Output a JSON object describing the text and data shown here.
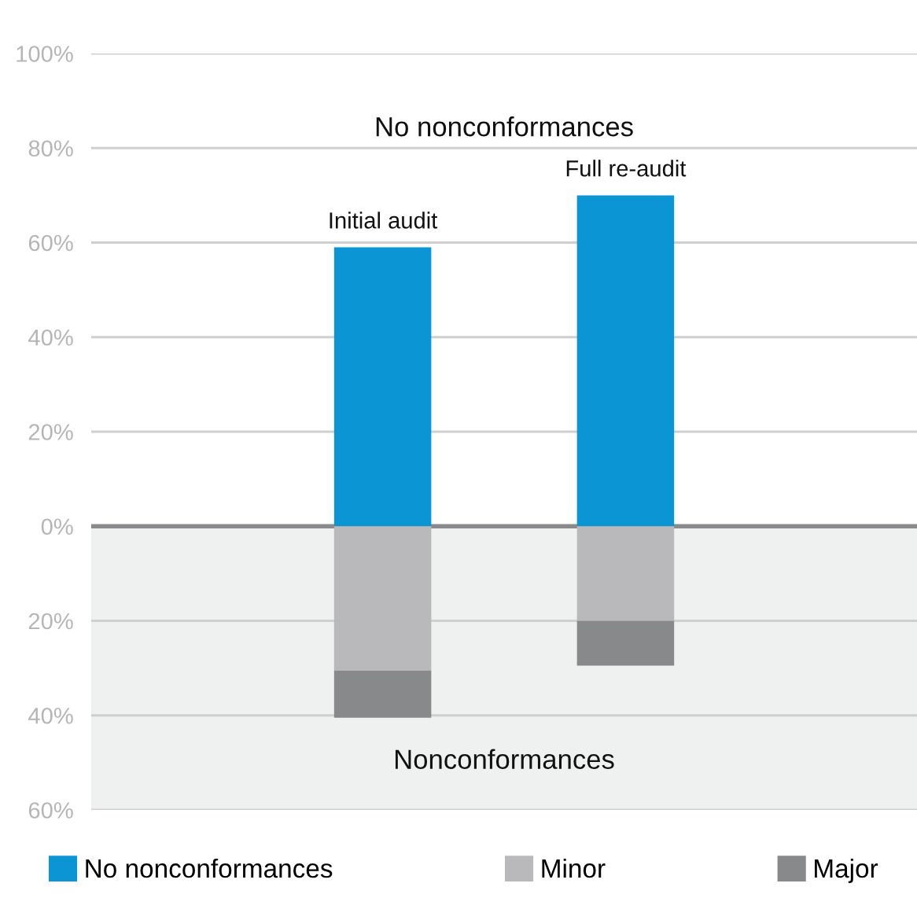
{
  "chart_data": {
    "type": "bar",
    "stacked": true,
    "categories": [
      "Initial audit",
      "Full re-audit"
    ],
    "series": [
      {
        "name": "No nonconformances",
        "color": "#0c95d5",
        "values": [
          59,
          70
        ]
      },
      {
        "name": "Minor",
        "color": "#b9b9bb",
        "values": [
          -30.5,
          -20
        ]
      },
      {
        "name": "Major",
        "color": "#88898b",
        "values": [
          -10,
          -9.5
        ]
      }
    ],
    "ylim": [
      -60,
      100
    ],
    "yticks": [
      {
        "value": -60,
        "label": "60%"
      },
      {
        "value": -40,
        "label": "40%"
      },
      {
        "value": -20,
        "label": "20%"
      },
      {
        "value": 0,
        "label": "0%"
      },
      {
        "value": 20,
        "label": "20%"
      },
      {
        "value": 40,
        "label": "40%"
      },
      {
        "value": 60,
        "label": "60%"
      },
      {
        "value": 80,
        "label": "80%"
      },
      {
        "value": 100,
        "label": "100%"
      }
    ],
    "bands": [
      {
        "axis": "y",
        "from": -60,
        "to": 0,
        "label": "Nonconformances",
        "color": "#eff0f0"
      }
    ],
    "annotations": [
      "No nonconformances"
    ],
    "grid": "y",
    "legend": "bottom"
  }
}
